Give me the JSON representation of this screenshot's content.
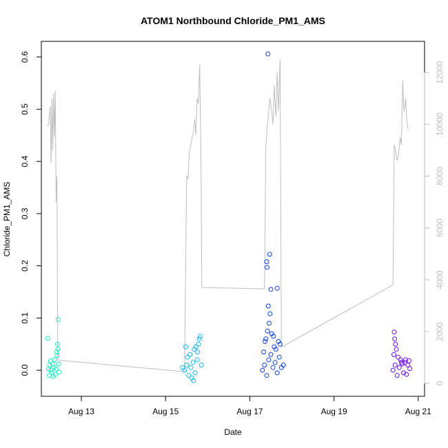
{
  "chart_data": {
    "type": "scatter",
    "title": "ATOM1 Northbound Chloride_PM1_AMS",
    "xlabel": "Date",
    "ylabel": "Chloride_PM1_AMS",
    "x_unit": "day of August",
    "xlim": [
      12.05,
      21.15
    ],
    "ylim": [
      -0.05,
      0.63
    ],
    "y2lim": [
      -500,
      13200
    ],
    "x_ticks": [
      13,
      15,
      17,
      19,
      21
    ],
    "x_tick_labels": [
      "Aug 13",
      "Aug 15",
      "Aug 17",
      "Aug 19",
      "Aug 21"
    ],
    "y_ticks": [
      0.0,
      0.1,
      0.2,
      0.3,
      0.4,
      0.5,
      0.6
    ],
    "y_tick_labels": [
      "0.0",
      "0.1",
      "0.2",
      "0.3",
      "0.4",
      "0.5",
      "0.6"
    ],
    "y2_ticks": [
      0,
      2000,
      4000,
      6000,
      8000,
      10000,
      12000
    ],
    "y2_tick_labels": [
      "0",
      "2000",
      "4000",
      "6000",
      "8000",
      "10000",
      "12000"
    ],
    "grid": false,
    "legend": "none",
    "series": [
      {
        "axis": "left",
        "color": "#12f5c0",
        "points": [
          [
            12.28,
            0.0
          ],
          [
            12.25,
            0.01
          ],
          [
            12.3,
            -0.005
          ],
          [
            12.35,
            0.005
          ],
          [
            12.22,
            0.002
          ],
          [
            12.32,
            0.012
          ],
          [
            12.38,
            -0.008
          ],
          [
            12.27,
            0.018
          ],
          [
            12.4,
            0.003
          ],
          [
            12.36,
            0.02
          ],
          [
            12.42,
            0.028
          ],
          [
            12.44,
            0.04
          ],
          [
            12.43,
            0.05
          ],
          [
            12.41,
            0.035
          ],
          [
            12.46,
            0.012
          ],
          [
            12.2,
            0.061
          ],
          [
            12.45,
            0.097
          ],
          [
            12.24,
            -0.01
          ],
          [
            12.33,
            -0.012
          ],
          [
            12.47,
            -0.004
          ]
        ]
      },
      {
        "axis": "left",
        "color": "#10b8f5",
        "points": [
          [
            15.45,
            0.0
          ],
          [
            15.5,
            0.01
          ],
          [
            15.55,
            -0.01
          ],
          [
            15.6,
            0.005
          ],
          [
            15.65,
            0.015
          ],
          [
            15.7,
            -0.005
          ],
          [
            15.75,
            0.02
          ],
          [
            15.52,
            0.025
          ],
          [
            15.58,
            0.03
          ],
          [
            15.62,
            -0.015
          ],
          [
            15.68,
            0.04
          ],
          [
            15.72,
            0.045
          ],
          [
            15.76,
            0.035
          ],
          [
            15.8,
            0.06
          ],
          [
            15.82,
            0.065
          ],
          [
            15.78,
            0.05
          ],
          [
            15.48,
            0.045
          ],
          [
            15.85,
            0.01
          ],
          [
            15.4,
            0.005
          ],
          [
            15.66,
            -0.02
          ]
        ]
      },
      {
        "axis": "left",
        "color": "#0a3ef5",
        "points": [
          [
            17.3,
            0.0
          ],
          [
            17.35,
            0.01
          ],
          [
            17.4,
            -0.01
          ],
          [
            17.45,
            0.02
          ],
          [
            17.5,
            0.03
          ],
          [
            17.55,
            0.005
          ],
          [
            17.6,
            0.015
          ],
          [
            17.65,
            -0.005
          ],
          [
            17.7,
            0.025
          ],
          [
            17.38,
            0.06
          ],
          [
            17.42,
            0.075
          ],
          [
            17.46,
            0.09
          ],
          [
            17.48,
            0.108
          ],
          [
            17.44,
            0.123
          ],
          [
            17.5,
            0.155
          ],
          [
            17.41,
            0.197
          ],
          [
            17.4,
            0.208
          ],
          [
            17.47,
            0.222
          ],
          [
            17.65,
            0.157
          ],
          [
            17.43,
            0.606
          ],
          [
            17.72,
            0.05
          ],
          [
            17.68,
            0.055
          ],
          [
            17.58,
            0.045
          ],
          [
            17.62,
            0.04
          ],
          [
            17.8,
            0.01
          ],
          [
            17.33,
            0.035
          ],
          [
            17.52,
            0.07
          ],
          [
            17.75,
            0.005
          ],
          [
            17.36,
            0.055
          ],
          [
            17.56,
            0.065
          ]
        ]
      },
      {
        "axis": "left",
        "color": "#6a0cf5",
        "points": [
          [
            20.4,
            0.0
          ],
          [
            20.45,
            0.01
          ],
          [
            20.5,
            -0.01
          ],
          [
            20.55,
            0.005
          ],
          [
            20.6,
            0.015
          ],
          [
            20.65,
            -0.005
          ],
          [
            20.7,
            0.02
          ],
          [
            20.75,
            0.01
          ],
          [
            20.8,
            0.003
          ],
          [
            20.42,
            0.03
          ],
          [
            20.48,
            0.04
          ],
          [
            20.46,
            0.05
          ],
          [
            20.44,
            0.06
          ],
          [
            20.43,
            0.073
          ],
          [
            20.58,
            0.02
          ],
          [
            20.68,
            0.015
          ],
          [
            20.52,
            0.025
          ],
          [
            20.62,
            0.012
          ],
          [
            20.72,
            -0.008
          ],
          [
            20.78,
            0.018
          ]
        ]
      },
      {
        "axis": "right",
        "type": "line",
        "color": "#bdbdbd",
        "points": [
          [
            12.2,
            9900
          ],
          [
            12.23,
            10100
          ],
          [
            12.26,
            10700
          ],
          [
            12.28,
            8500
          ],
          [
            12.3,
            11000
          ],
          [
            12.32,
            9000
          ],
          [
            12.34,
            11200
          ],
          [
            12.36,
            9500
          ],
          [
            12.38,
            11300
          ],
          [
            12.4,
            7000
          ],
          [
            12.42,
            8000
          ],
          [
            12.44,
            900
          ],
          [
            15.45,
            450
          ],
          [
            15.5,
            8000
          ],
          [
            15.53,
            7900
          ],
          [
            15.57,
            9000
          ],
          [
            15.6,
            9200
          ],
          [
            15.63,
            9500
          ],
          [
            15.66,
            9700
          ],
          [
            15.69,
            10200
          ],
          [
            15.72,
            9600
          ],
          [
            15.75,
            11000
          ],
          [
            15.78,
            10800
          ],
          [
            15.81,
            12300
          ],
          [
            15.84,
            8700
          ],
          [
            15.86,
            3700
          ],
          [
            17.35,
            3650
          ],
          [
            17.38,
            9200
          ],
          [
            17.42,
            10000
          ],
          [
            17.45,
            10500
          ],
          [
            17.48,
            11000
          ],
          [
            17.52,
            10500
          ],
          [
            17.55,
            10000
          ],
          [
            17.58,
            11500
          ],
          [
            17.62,
            10300
          ],
          [
            17.65,
            12000
          ],
          [
            17.68,
            10500
          ],
          [
            17.72,
            12500
          ],
          [
            17.75,
            1400
          ],
          [
            20.4,
            3800
          ],
          [
            20.43,
            9200
          ],
          [
            20.46,
            9000
          ],
          [
            20.5,
            8600
          ],
          [
            20.53,
            8800
          ],
          [
            20.57,
            9500
          ],
          [
            20.6,
            9200
          ],
          [
            20.63,
            11700
          ],
          [
            20.66,
            10500
          ],
          [
            20.7,
            11000
          ],
          [
            20.73,
            10100
          ],
          [
            20.76,
            9800
          ]
        ]
      }
    ]
  }
}
